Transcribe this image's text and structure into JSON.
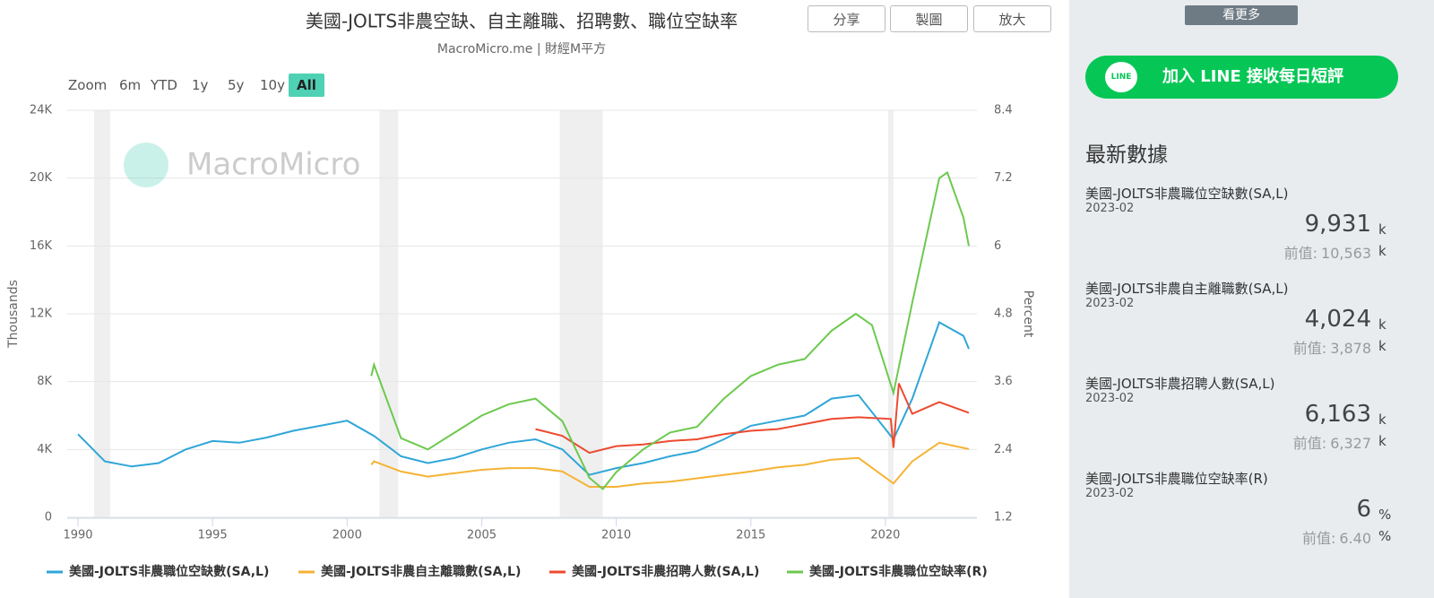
{
  "header": {
    "title": "美國-JOLTS非農空缺、自主離職、招聘數、職位空缺率",
    "subtitle": "MacroMicro.me | 財經M平方",
    "buttons": [
      "分享",
      "製圖",
      "放大"
    ]
  },
  "range_selector": {
    "label": "Zoom",
    "options": [
      "6m",
      "YTD",
      "1y",
      "5y",
      "10y",
      "All"
    ]
  },
  "watermark": "MacroMicro",
  "chart_data": {
    "type": "line",
    "y_label": "Thousands",
    "y2_label": "Percent",
    "xlim": [
      1989.6,
      2023.4
    ],
    "xticks": [
      1990,
      1995,
      2000,
      2005,
      2010,
      2015,
      2020
    ],
    "ylim": [
      0,
      24000
    ],
    "yticks": [
      {
        "value": 0,
        "label": "0"
      },
      {
        "value": 4000,
        "label": "4K"
      },
      {
        "value": 8000,
        "label": "8K"
      },
      {
        "value": 12000,
        "label": "12K"
      },
      {
        "value": 16000,
        "label": "16K"
      },
      {
        "value": 20000,
        "label": "20K"
      },
      {
        "value": 24000,
        "label": "24K"
      }
    ],
    "y2lim": [
      1.2,
      8.4
    ],
    "y2ticks": [
      1.2,
      2.4,
      3.6,
      4.8,
      6,
      7.2,
      8.4
    ],
    "grid": true,
    "legend": "bottom",
    "recessions": [
      [
        1990.6,
        1991.2
      ],
      [
        2001.2,
        2001.9
      ],
      [
        2007.9,
        2009.5
      ],
      [
        2020.1,
        2020.3
      ]
    ],
    "series": [
      {
        "name": "美國-JOLTS非農職位空缺數(SA,L)",
        "color": "#2fa6d8",
        "x": [
          1990,
          1991,
          1992,
          1993,
          1994,
          1995,
          1996,
          1997,
          1998,
          1999,
          2000,
          2001,
          2002,
          2003,
          2004,
          2005,
          2006,
          2007,
          2008,
          2009,
          2010,
          2011,
          2012,
          2013,
          2014,
          2015,
          2016,
          2017,
          2018,
          2019,
          2020.3,
          2021,
          2022,
          2022.9,
          2023.1
        ],
        "values": [
          4900,
          3300,
          3000,
          3200,
          4000,
          4500,
          4400,
          4700,
          5100,
          5400,
          5700,
          4800,
          3600,
          3200,
          3500,
          4000,
          4400,
          4600,
          4000,
          2500,
          2900,
          3200,
          3600,
          3900,
          4600,
          5400,
          5700,
          6000,
          7000,
          7200,
          4600,
          7000,
          11500,
          10700,
          9931
        ]
      },
      {
        "name": "美國-JOLTS非農自主離職數(SA,L)",
        "color": "#f5b335",
        "x": [
          2000.9,
          2001,
          2002,
          2003,
          2004,
          2005,
          2006,
          2007,
          2008,
          2009,
          2010,
          2011,
          2012,
          2013,
          2014,
          2015,
          2016,
          2017,
          2018,
          2019,
          2020.3,
          2021,
          2022,
          2023.1
        ],
        "values": [
          3100,
          3300,
          2700,
          2400,
          2600,
          2800,
          2900,
          2900,
          2700,
          1800,
          1800,
          2000,
          2100,
          2300,
          2500,
          2700,
          2950,
          3100,
          3400,
          3500,
          2000,
          3300,
          4400,
          4024
        ]
      },
      {
        "name": "美國-JOLTS非農招聘人數(SA,L)",
        "color": "#ec4a2f",
        "x": [
          2007,
          2008,
          2009,
          2010,
          2011,
          2012,
          2013,
          2014,
          2015,
          2016,
          2017,
          2018,
          2019,
          2020.2,
          2020.3,
          2020.5,
          2021,
          2022,
          2023.1
        ],
        "values": [
          5200,
          4800,
          3800,
          4200,
          4300,
          4500,
          4600,
          4900,
          5100,
          5200,
          5500,
          5800,
          5900,
          5800,
          4100,
          7900,
          6100,
          6800,
          6163
        ]
      },
      {
        "name": "美國-JOLTS非農職位空缺率(R)",
        "color": "#6cc94e",
        "axis": "y2",
        "x": [
          2000.9,
          2001,
          2002,
          2003,
          2004,
          2005,
          2006,
          2007,
          2008,
          2009,
          2009.5,
          2010,
          2011,
          2012,
          2013,
          2014,
          2015,
          2016,
          2017,
          2018,
          2018.9,
          2019.5,
          2020.3,
          2021,
          2022,
          2022.3,
          2022.9,
          2023.1
        ],
        "values": [
          3.7,
          3.9,
          2.6,
          2.4,
          2.7,
          3.0,
          3.2,
          3.3,
          2.9,
          1.9,
          1.7,
          2.0,
          2.4,
          2.7,
          2.8,
          3.3,
          3.7,
          3.9,
          4.0,
          4.5,
          4.8,
          4.6,
          3.4,
          5.0,
          7.2,
          7.3,
          6.5,
          6
        ]
      }
    ]
  },
  "sidebar": {
    "more_button": "看更多",
    "line_logo": "LINE",
    "line_button": "加入 LINE 接收每日短評",
    "heading": "最新數據",
    "prev_label": "前值:",
    "items": [
      {
        "name": "美國-JOLTS非農職位空缺數(SA,L)",
        "date": "2023-02",
        "value": "9,931",
        "unit": "k",
        "prev": "10,563"
      },
      {
        "name": "美國-JOLTS非農自主離職數(SA,L)",
        "date": "2023-02",
        "value": "4,024",
        "unit": "k",
        "prev": "3,878"
      },
      {
        "name": "美國-JOLTS非農招聘人數(SA,L)",
        "date": "2023-02",
        "value": "6,163",
        "unit": "k",
        "prev": "6,327"
      },
      {
        "name": "美國-JOLTS非農職位空缺率(R)",
        "date": "2023-02",
        "value": "6",
        "unit": "%",
        "prev": "6.40"
      }
    ]
  }
}
